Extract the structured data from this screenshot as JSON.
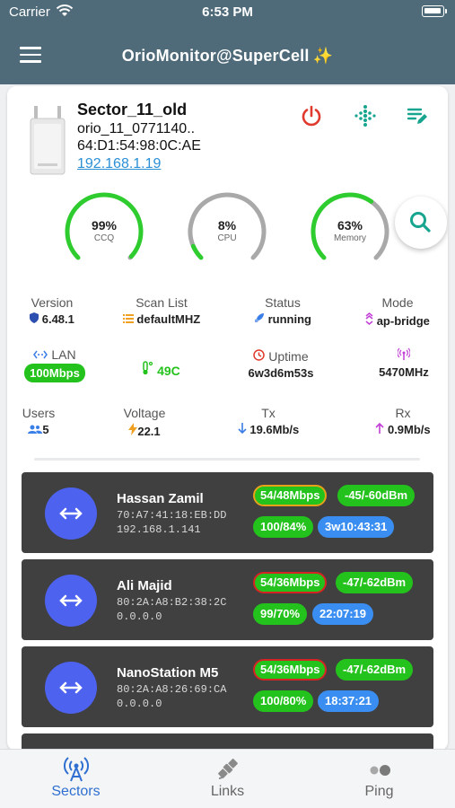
{
  "statusbar": {
    "carrier": "Carrier",
    "time": "6:53 PM"
  },
  "appbar": {
    "title": "OrioMonitor@SuperCell",
    "sparkle": "✨"
  },
  "device": {
    "name": "Sector_11_old",
    "identity": "orio_11_0771140..",
    "mac": "64:D1:54:98:0C:AE",
    "ip": "192.168.1.19"
  },
  "gauges": [
    {
      "value": "99%",
      "label": "CCQ",
      "fraction": 0.99,
      "color": "#2ecc2e"
    },
    {
      "value": "8%",
      "label": "CPU",
      "fraction": 0.08,
      "color": "#2ecc2e"
    },
    {
      "value": "63%",
      "label": "Memory",
      "fraction": 0.63,
      "color": "#2ecc2e"
    }
  ],
  "info": {
    "version_label": "Version",
    "version": "6.48.1",
    "scanlist_label": "Scan List",
    "scanlist": "defaultMHZ",
    "status_label": "Status",
    "status": "running",
    "mode_label": "Mode",
    "mode": "ap-bridge",
    "lan_label": "LAN",
    "lan": "100Mbps",
    "temperature": "49C",
    "uptime_label": "Uptime",
    "uptime": "6w3d6m53s",
    "frequency": "5470MHz",
    "users_label": "Users",
    "users": "5",
    "voltage_label": "Voltage",
    "voltage": "22.1",
    "tx_label": "Tx",
    "tx": "19.6Mb/s",
    "rx_label": "Rx",
    "rx": "0.9Mb/s"
  },
  "clients": [
    {
      "name": "Hassan Zamil",
      "mac": "70:A7:41:18:EB:DD",
      "ip": "192.168.1.141",
      "rate": "54/48Mbps",
      "rate_border": "orange",
      "signal": "-45/-60dBm",
      "ccq": "100/84%",
      "uptime": "3w10:43:31"
    },
    {
      "name": "Ali Majid",
      "mac": "80:2A:A8:B2:38:2C",
      "ip": "0.0.0.0",
      "rate": "54/36Mbps",
      "rate_border": "red",
      "signal": "-47/-62dBm",
      "ccq": "99/70%",
      "uptime": "22:07:19"
    },
    {
      "name": "NanoStation M5",
      "mac": "80:2A:A8:26:69:CA",
      "ip": "0.0.0.0",
      "rate": "54/36Mbps",
      "rate_border": "red",
      "signal": "-47/-62dBm",
      "ccq": "100/80%",
      "uptime": "18:37:21"
    }
  ],
  "tabs": [
    {
      "label": "Sectors",
      "icon": "antenna-icon",
      "active": true
    },
    {
      "label": "Links",
      "icon": "satellite-icon",
      "active": false
    },
    {
      "label": "Ping",
      "icon": "ping-icon",
      "active": false
    }
  ],
  "colors": {
    "appbar": "#4f6b7a",
    "accent": "#2f6fd1",
    "green": "#24c21c",
    "client_card": "#404040",
    "avatar": "#4e62f0"
  }
}
